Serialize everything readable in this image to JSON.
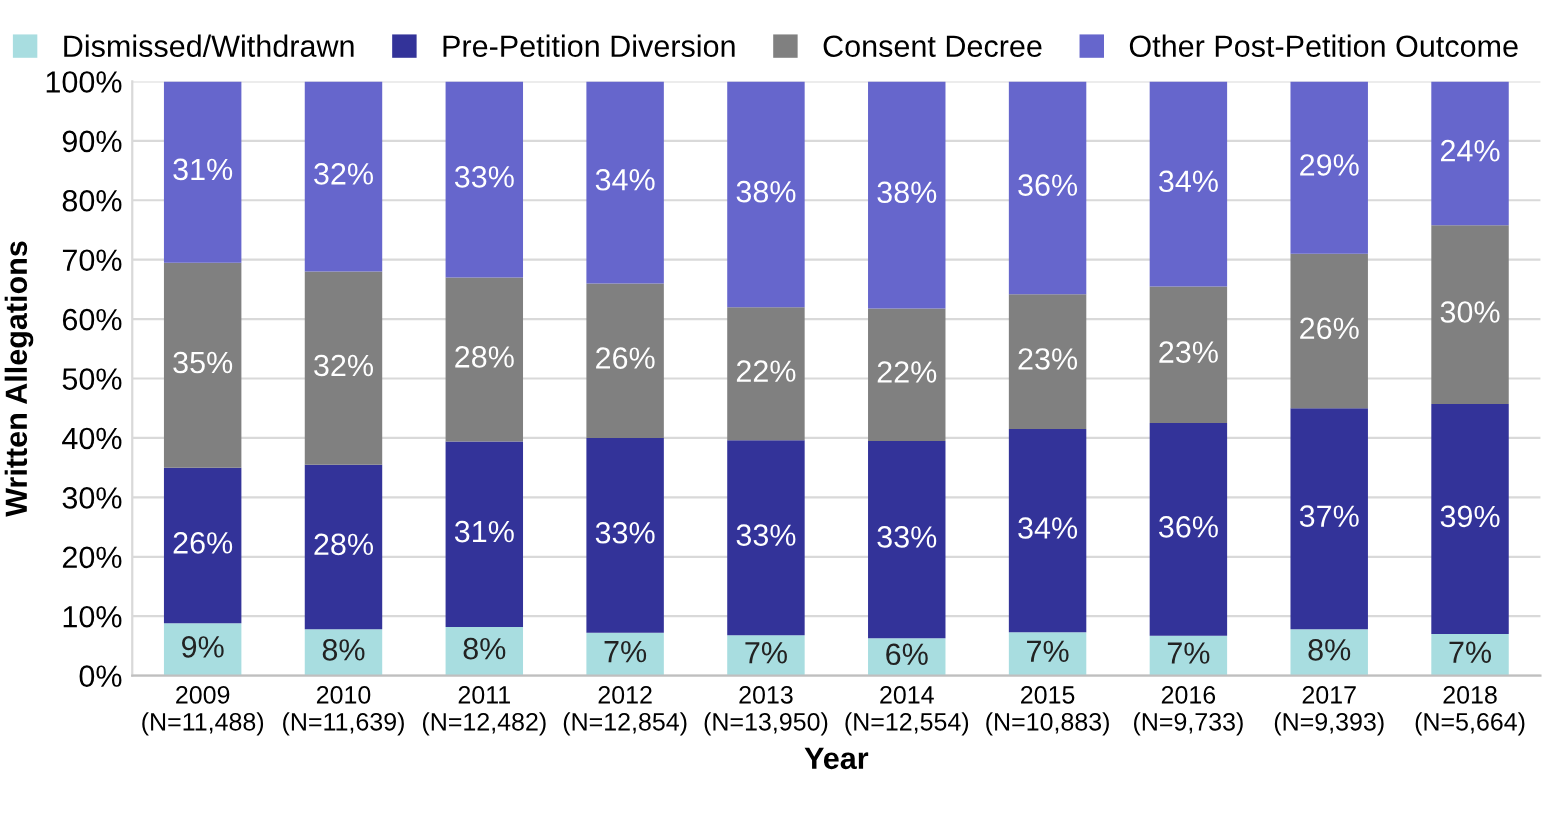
{
  "chart_data": {
    "type": "bar",
    "stacked": true,
    "xlabel": "Year",
    "ylabel": "Written Allegations",
    "categories": [
      "2009\n(N=11,488)",
      "2010\n(N=11,639)",
      "2011\n(N=12,482)",
      "2012\n(N=12,854)",
      "2013\n(N=13,950)",
      "2014\n(N=12,554)",
      "2015\n(N=10,883)",
      "2016\n(N=9,733)",
      "2017\n(N=9,393)",
      "2018\n(N=5,664)"
    ],
    "series": [
      {
        "name": "Dismissed/Withdrawn",
        "color": "#a8dde0",
        "values": [
          8.8,
          7.8,
          8.2,
          7.2,
          6.8,
          6.3,
          7.3,
          6.7,
          7.8,
          7.0
        ],
        "value_labels": [
          "9%",
          "8%",
          "8%",
          "7%",
          "7%",
          "6%",
          "7%",
          "7%",
          "8%",
          "7%"
        ]
      },
      {
        "name": "Pre-Petition Diversion",
        "color": "#333399",
        "values": [
          26.2,
          27.7,
          31.2,
          32.8,
          32.8,
          33.2,
          34.2,
          35.8,
          37.2,
          38.7
        ],
        "value_labels": [
          "26%",
          "28%",
          "31%",
          "33%",
          "33%",
          "33%",
          "34%",
          "36%",
          "37%",
          "39%"
        ]
      },
      {
        "name": "Consent Decree",
        "color": "#808080",
        "values": [
          34.5,
          32.5,
          27.6,
          26.0,
          22.4,
          22.3,
          22.7,
          23.0,
          26.0,
          30.1
        ],
        "value_labels": [
          "35%",
          "32%",
          "28%",
          "26%",
          "22%",
          "22%",
          "23%",
          "23%",
          "26%",
          "30%"
        ]
      },
      {
        "name": "Other Post-Petition Outcome",
        "color": "#6666cc",
        "values": [
          30.5,
          32.0,
          33.0,
          34.0,
          38.0,
          38.2,
          35.8,
          34.5,
          29.0,
          24.2
        ],
        "value_labels": [
          "31%",
          "32%",
          "33%",
          "34%",
          "38%",
          "38%",
          "36%",
          "34%",
          "29%",
          "24%"
        ]
      }
    ],
    "ylim": [
      0,
      100
    ],
    "yticks": [
      {
        "value": 0,
        "label": "0%"
      },
      {
        "value": 10,
        "label": "10%"
      },
      {
        "value": 20,
        "label": "20%"
      },
      {
        "value": 30,
        "label": "30%"
      },
      {
        "value": 40,
        "label": "40%"
      },
      {
        "value": 50,
        "label": "50%"
      },
      {
        "value": 60,
        "label": "60%"
      },
      {
        "value": 70,
        "label": "70%"
      },
      {
        "value": 80,
        "label": "80%"
      },
      {
        "value": 90,
        "label": "90%"
      },
      {
        "value": 100,
        "label": "100%"
      }
    ],
    "grid": "y",
    "legend": "top"
  }
}
